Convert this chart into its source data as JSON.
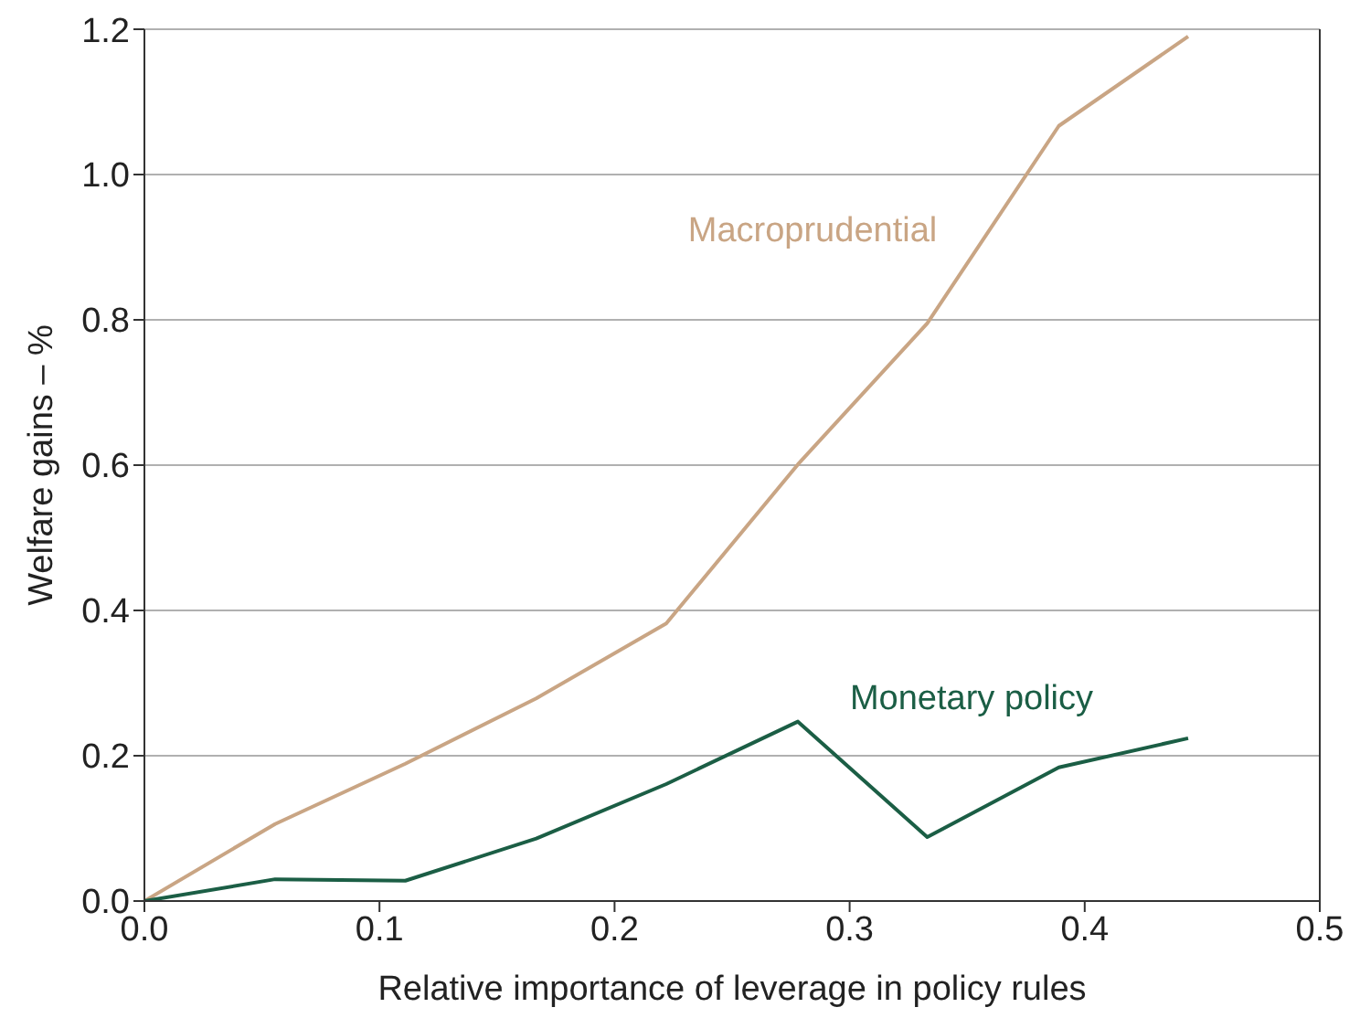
{
  "chart_data": {
    "type": "line",
    "xlabel": "Relative importance of leverage in policy rules",
    "ylabel": "Welfare gains – %",
    "x": [
      0,
      0.0556,
      0.111,
      0.1667,
      0.222,
      0.278,
      0.333,
      0.389,
      0.444
    ],
    "series": [
      {
        "name": "Macroprudential",
        "color": "#c9a584",
        "values": [
          0,
          0.106,
          0.189,
          0.279,
          0.382,
          0.601,
          0.795,
          1.067,
          1.19
        ]
      },
      {
        "name": "Monetary policy",
        "color": "#1b5e45",
        "values": [
          0,
          0.03,
          0.028,
          0.086,
          0.161,
          0.247,
          0.088,
          0.184,
          0.224
        ]
      }
    ],
    "xlim": [
      0,
      0.5
    ],
    "xticks": [
      {
        "value": 0,
        "label": "0.0"
      },
      0.1,
      0.2,
      0.3,
      0.4,
      0.5
    ],
    "ylim": [
      0,
      1.2
    ],
    "yticks": [
      {
        "value": 0,
        "label": "0.0"
      },
      0.2,
      0.4,
      0.6,
      0.8,
      {
        "value": 1,
        "label": "1.0"
      },
      1.2
    ],
    "grid": "y",
    "marker": "none",
    "line_style": "solid"
  }
}
